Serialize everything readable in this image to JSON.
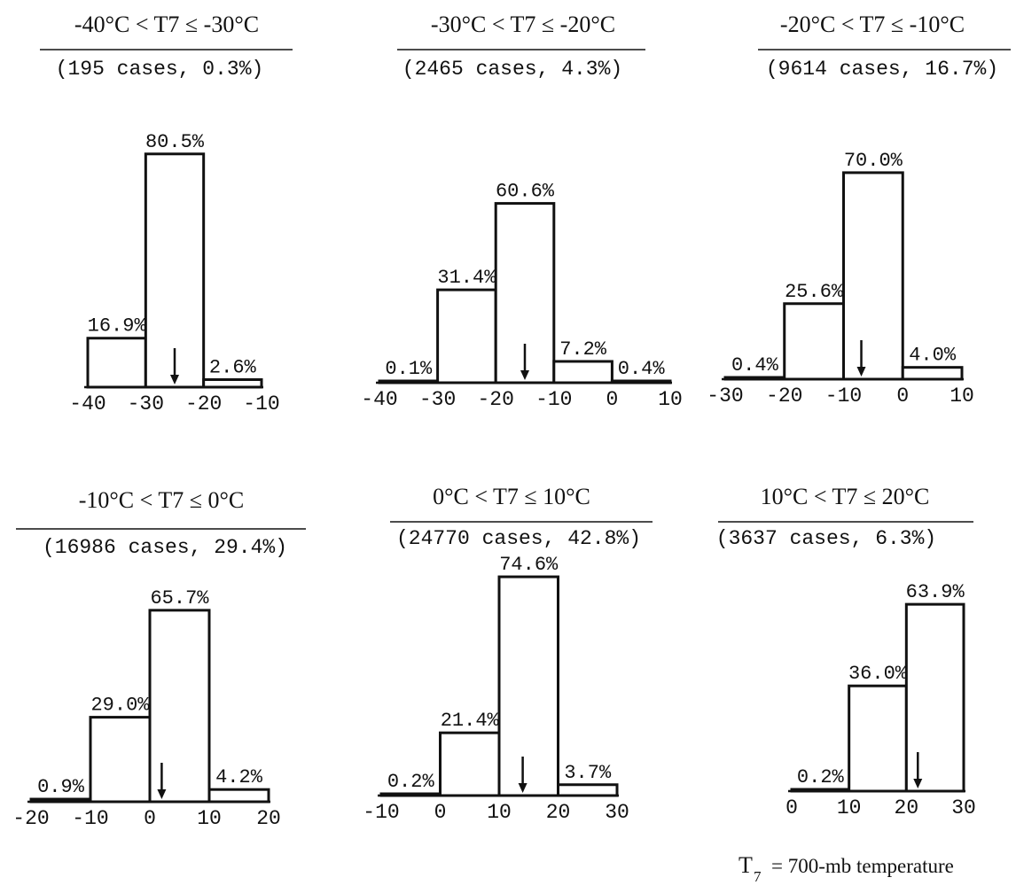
{
  "chart_data": [
    {
      "type": "bar",
      "title": "-40°C < T7 ≤ -30°C",
      "subtitle": "(195 cases, 0.3%)",
      "bins": [
        [
          -40,
          -30
        ],
        [
          -30,
          -20
        ],
        [
          -20,
          -10
        ]
      ],
      "values": [
        16.9,
        80.5,
        2.6
      ],
      "labels": [
        "16.9%",
        "80.5%",
        "2.6%"
      ],
      "arrow": -25,
      "xticks": [
        -40,
        -30,
        -20,
        -10
      ],
      "xtick_labels": [
        "-40",
        "-30",
        "-20",
        "-10"
      ],
      "xlim": [
        -40,
        -10
      ]
    },
    {
      "type": "bar",
      "title": "-30°C < T7 ≤ -20°C",
      "subtitle": "(2465 cases, 4.3%)",
      "bins": [
        [
          -40,
          -30
        ],
        [
          -30,
          -20
        ],
        [
          -20,
          -10
        ],
        [
          -10,
          0
        ],
        [
          0,
          10
        ]
      ],
      "values": [
        0.1,
        31.4,
        60.6,
        7.2,
        0.4
      ],
      "labels": [
        "0.1%",
        "31.4%",
        "60.6%",
        "7.2%",
        "0.4%"
      ],
      "arrow": -15,
      "xticks": [
        -40,
        -30,
        -20,
        -10,
        0,
        10
      ],
      "xtick_labels": [
        "-40",
        "-30",
        "-20",
        "-10",
        "0",
        "10"
      ],
      "xlim": [
        -40,
        10
      ]
    },
    {
      "type": "bar",
      "title": "-20°C < T7 ≤ -10°C",
      "subtitle": "(9614 cases, 16.7%)",
      "bins": [
        [
          -30,
          -20
        ],
        [
          -20,
          -10
        ],
        [
          -10,
          0
        ],
        [
          0,
          10
        ]
      ],
      "values": [
        0.4,
        25.6,
        70.0,
        4.0
      ],
      "labels": [
        "0.4%",
        "25.6%",
        "70.0%",
        "4.0%"
      ],
      "arrow": -7,
      "xticks": [
        -30,
        -20,
        -10,
        0,
        10
      ],
      "xtick_labels": [
        "-30",
        "-20",
        "-10",
        "0",
        "10"
      ],
      "xlim": [
        -30,
        10
      ]
    },
    {
      "type": "bar",
      "title": "-10°C < T7 ≤ 0°C",
      "subtitle": "(16986 cases, 29.4%)",
      "bins": [
        [
          -20,
          -10
        ],
        [
          -10,
          0
        ],
        [
          0,
          10
        ],
        [
          10,
          20
        ]
      ],
      "values": [
        0.9,
        29.0,
        65.7,
        4.2
      ],
      "labels": [
        "0.9%",
        "29.0%",
        "65.7%",
        "4.2%"
      ],
      "arrow": 2,
      "xticks": [
        -20,
        -10,
        0,
        10,
        20
      ],
      "xtick_labels": [
        "-20",
        "-10",
        "0",
        "10",
        "20"
      ],
      "xlim": [
        -20,
        20
      ]
    },
    {
      "type": "bar",
      "title": "0°C < T7 ≤ 10°C",
      "subtitle": "(24770 cases, 42.8%)",
      "bins": [
        [
          -10,
          0
        ],
        [
          0,
          10
        ],
        [
          10,
          20
        ],
        [
          20,
          30
        ]
      ],
      "values": [
        0.2,
        21.4,
        74.6,
        3.7
      ],
      "labels": [
        "0.2%",
        "21.4%",
        "74.6%",
        "3.7%"
      ],
      "arrow": 14,
      "xticks": [
        -10,
        0,
        10,
        20,
        30
      ],
      "xtick_labels": [
        "-10",
        "0",
        "10",
        "20",
        "30"
      ],
      "xlim": [
        -10,
        30
      ]
    },
    {
      "type": "bar",
      "title": "10°C < T7 ≤ 20°C",
      "subtitle": "(3637 cases, 6.3%)",
      "bins": [
        [
          0,
          10
        ],
        [
          10,
          20
        ],
        [
          20,
          30
        ]
      ],
      "values": [
        0.2,
        36.0,
        63.9
      ],
      "labels": [
        "0.2%",
        "36.0%",
        "63.9%"
      ],
      "arrow": 22,
      "xticks": [
        0,
        10,
        20,
        30
      ],
      "xtick_labels": [
        "0",
        "10",
        "20",
        "30"
      ],
      "xlim": [
        0,
        30
      ]
    }
  ],
  "legend": {
    "symbol": "T",
    "subscript": "7",
    "text": "= 700-mb temperature"
  }
}
